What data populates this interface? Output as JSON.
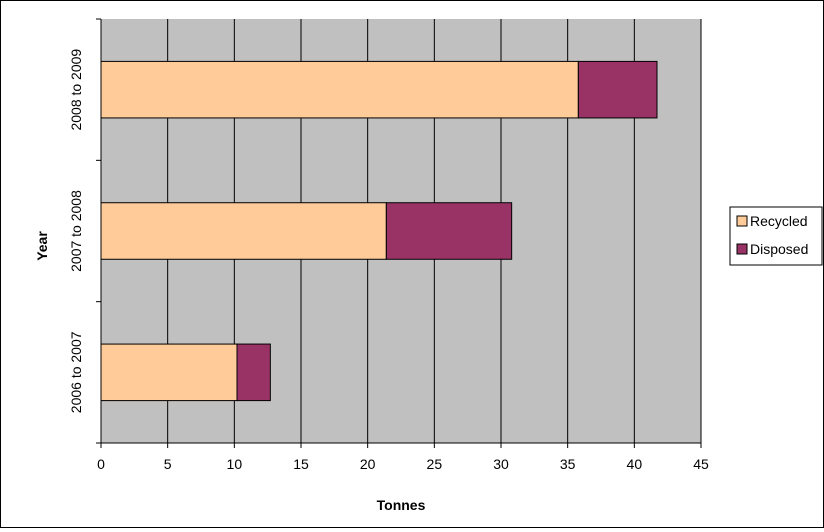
{
  "chart_data": {
    "type": "bar",
    "orientation": "horizontal",
    "stacked": true,
    "categories": [
      "2006 to 2007",
      "2007 to 2008",
      "2008 to 2009"
    ],
    "series": [
      {
        "name": "Recycled",
        "values": [
          10.2,
          21.4,
          35.8
        ],
        "color": "#ffcc99"
      },
      {
        "name": "Disposed",
        "values": [
          2.5,
          9.4,
          5.9
        ],
        "color": "#993366"
      }
    ],
    "xlabel": "Tonnes",
    "ylabel": "Year",
    "xlim": [
      0,
      45
    ],
    "xticks": [
      "0",
      "5",
      "10",
      "15",
      "20",
      "25",
      "30",
      "35",
      "40",
      "45"
    ],
    "grid": "vertical",
    "plot_background": "#c0c0c0",
    "legend_position": "right"
  }
}
